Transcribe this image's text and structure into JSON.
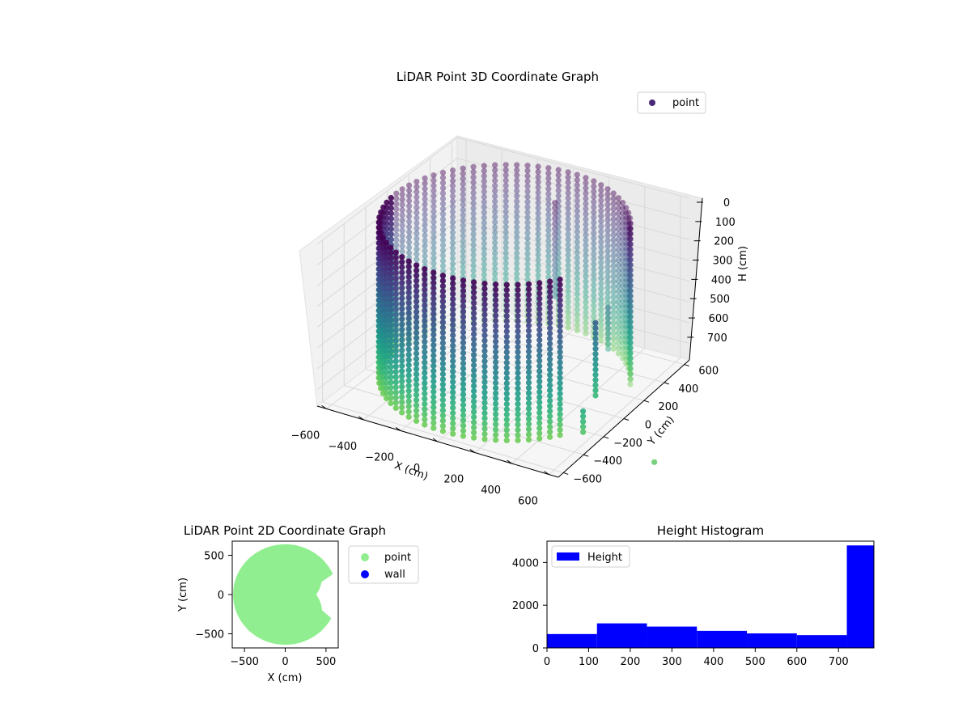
{
  "chart_data": [
    {
      "type": "scatter3d",
      "title": "LiDAR Point 3D Coordinate Graph",
      "xlabel": "X (cm)",
      "ylabel": "Y (cm)",
      "zlabel": "H (cm)",
      "xticks": [
        -600,
        -400,
        -200,
        0,
        200,
        400,
        600
      ],
      "yticks": [
        -600,
        -400,
        -200,
        0,
        200,
        400,
        600
      ],
      "zticks": [
        0,
        100,
        200,
        300,
        400,
        500,
        600,
        700
      ],
      "xlim": [
        -650,
        650
      ],
      "ylim": [
        -650,
        650
      ],
      "zlim": [
        0,
        780
      ],
      "z_inverted": true,
      "colormap": "viridis",
      "legend": [
        {
          "label": "point",
          "color": "#482878"
        }
      ],
      "legend_position": "top-right",
      "series": [
        {
          "name": "point",
          "shape": "cylindrical wall",
          "radius": 600,
          "height_range": [
            0,
            750
          ],
          "gap_angle_deg": [
            -35,
            25
          ],
          "objects": [
            {
              "x": 100,
              "y": 300,
              "h_range": [
                0,
                450
              ]
            },
            {
              "x": 550,
              "y": -100,
              "h_range": [
                300,
                650
              ]
            },
            {
              "x": 480,
              "y": 150,
              "h_range": [
                350,
                550
              ]
            },
            {
              "x": 620,
              "y": -350,
              "h_range": [
                600,
                700
              ]
            }
          ]
        }
      ]
    },
    {
      "type": "scatter",
      "title": "LiDAR Point 2D Coordinate Graph",
      "xlabel": "X (cm)",
      "ylabel": "Y (cm)",
      "xticks": [
        -500,
        0,
        500
      ],
      "yticks": [
        -500,
        0,
        500
      ],
      "xlim": [
        -650,
        650
      ],
      "ylim": [
        -680,
        680
      ],
      "series": [
        {
          "name": "point",
          "color": "#90ee90",
          "shape": "filled disk",
          "radius": 640
        },
        {
          "name": "wall",
          "color": "#0000ff"
        }
      ],
      "legend_position": "outside-right"
    },
    {
      "type": "bar",
      "title": "Height Histogram",
      "xticks": [
        0,
        100,
        200,
        300,
        400,
        500,
        600,
        700
      ],
      "yticks": [
        0,
        2000,
        4000
      ],
      "xlim": [
        0,
        785
      ],
      "ylim": [
        0,
        5000
      ],
      "bin_edges": [
        0,
        120,
        240,
        360,
        480,
        600,
        720,
        785
      ],
      "values": [
        650,
        1150,
        1000,
        800,
        680,
        600,
        4800
      ],
      "series": [
        {
          "name": "Height",
          "color": "#0000ff"
        }
      ],
      "legend_position": "top-left"
    }
  ]
}
